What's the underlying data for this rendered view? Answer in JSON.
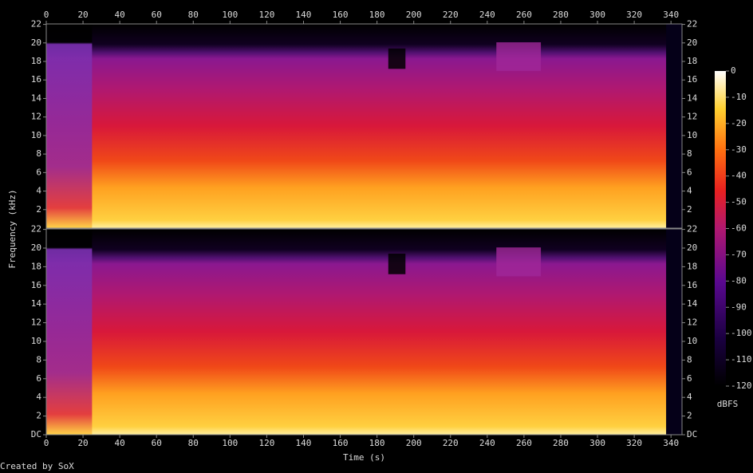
{
  "chart_data": [
    {
      "type": "spectrogram",
      "xlim": [
        0,
        346
      ],
      "xticks": [
        0,
        20,
        40,
        60,
        80,
        100,
        120,
        140,
        160,
        180,
        200,
        220,
        240,
        260,
        280,
        300,
        320,
        340
      ],
      "ylim": [
        0,
        22.05
      ],
      "yticks": [
        2,
        4,
        6,
        8,
        10,
        12,
        14,
        16,
        18,
        20,
        22
      ]
    },
    {
      "type": "spectrogram",
      "xlabel": "Time (s)",
      "xlim": [
        0,
        346
      ],
      "xticks": [
        0,
        20,
        40,
        60,
        80,
        100,
        120,
        140,
        160,
        180,
        200,
        220,
        240,
        260,
        280,
        300,
        320,
        340
      ],
      "ylim": [
        0,
        22.05
      ],
      "yticks": [
        {
          "value": 0,
          "label": "DC"
        },
        2,
        4,
        6,
        8,
        10,
        12,
        14,
        16,
        18,
        20,
        22
      ]
    }
  ],
  "ylabel": "Frequency (kHz)",
  "colorbar": {
    "label": "dBFS",
    "lim": [
      -120,
      0
    ],
    "ticks": [
      0,
      -10,
      -20,
      -30,
      -40,
      -50,
      -60,
      -70,
      -80,
      -90,
      -100,
      -110,
      -120
    ]
  },
  "footer": "Created by SoX"
}
